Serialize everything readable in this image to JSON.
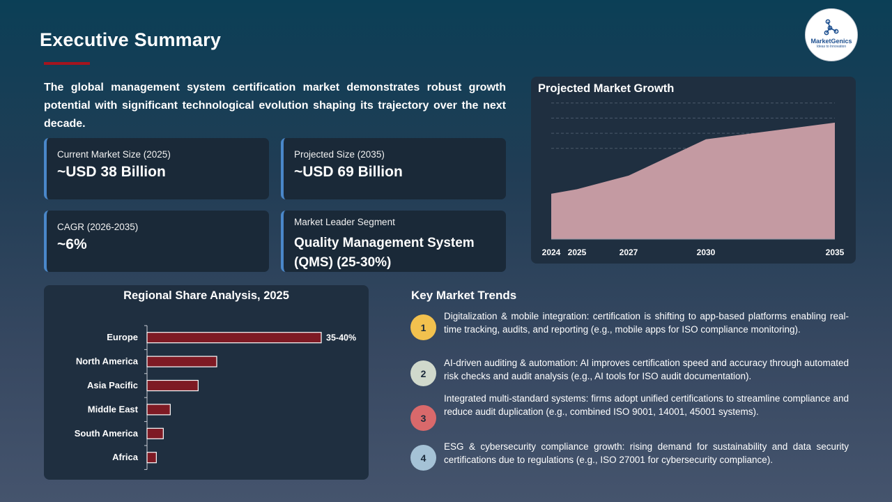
{
  "header": {
    "title": "Executive Summary"
  },
  "logo": {
    "brand": "MarketGenics",
    "tagline": "Ideas to Innovation"
  },
  "intro": "The global management system certification market demonstrates robust growth potential with significant technological evolution shaping its trajectory over the next decade.",
  "kpis": [
    {
      "label": "Current Market Size (2025)",
      "value": "~USD 38 Billion"
    },
    {
      "label": "Projected Size (2035)",
      "value": "~USD 69 Billion"
    },
    {
      "label": "CAGR (2026-2035)",
      "value": "~6%"
    },
    {
      "label": "Market Leader Segment",
      "value": "Quality Management System (QMS) (25-30%)"
    }
  ],
  "colors": {
    "accent": "#a5141e",
    "bar": "#7e1a24",
    "area": "#c49aa2",
    "kpi_border": "#4a87c9"
  },
  "chart_data": [
    {
      "type": "area",
      "title": "Projected Market Growth",
      "x": [
        "2024",
        "2025",
        "2027",
        "2030",
        "2035"
      ],
      "values": [
        30,
        33,
        42,
        66,
        77
      ],
      "ylim": [
        0,
        100
      ],
      "grid": true,
      "ylabel": "",
      "xlabel": ""
    },
    {
      "type": "bar",
      "orientation": "horizontal",
      "title": "Regional Share Analysis, 2025",
      "categories": [
        "Europe",
        "North America",
        "Asia Pacific",
        "Middle East",
        "South America",
        "Africa"
      ],
      "values": [
        37.5,
        15,
        11,
        5,
        3.5,
        2
      ],
      "data_labels": [
        "35-40%",
        "",
        "",
        "",
        "",
        ""
      ],
      "xlim": [
        0,
        45
      ]
    }
  ],
  "trends": {
    "title": "Key Market Trends",
    "items": [
      {
        "num": "1",
        "color": "#f2c14e",
        "text": "Digitalization & mobile integration: certification is shifting to app-based platforms enabling real-time tracking, audits, and reporting (e.g., mobile apps for ISO compliance monitoring)."
      },
      {
        "num": "2",
        "color": "#d0d9cc",
        "text": "AI-driven auditing & automation: AI improves certification speed and accuracy through automated risk checks and audit analysis (e.g., AI tools for ISO audit documentation)."
      },
      {
        "num": "3",
        "color": "#d9696b",
        "text": "Integrated multi-standard systems: firms adopt unified certifications to streamline compliance and reduce audit duplication (e.g., combined ISO 9001, 14001, 45001 systems)."
      },
      {
        "num": "4",
        "color": "#a5c2d6",
        "text": "ESG & cybersecurity compliance growth: rising demand for sustainability and data security certifications due to regulations (e.g., ISO 27001 for cybersecurity compliance)."
      }
    ]
  }
}
